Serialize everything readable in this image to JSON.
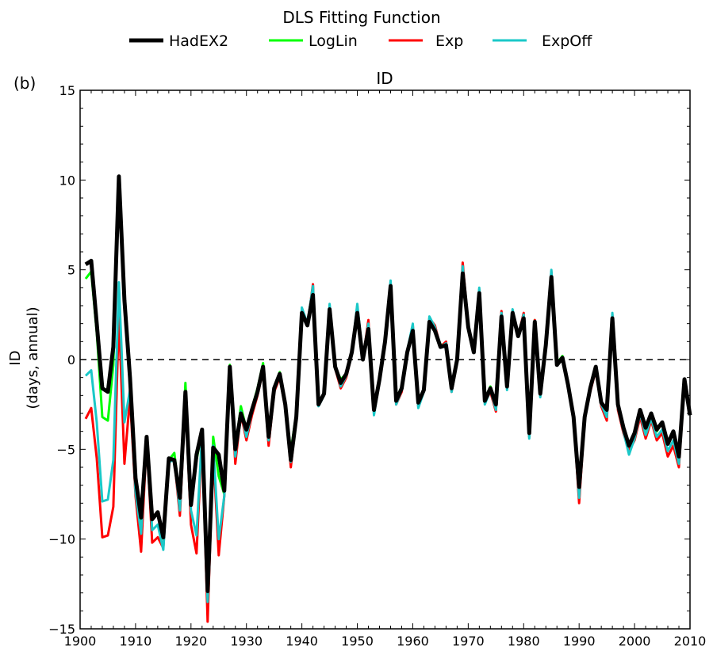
{
  "chart_data": {
    "type": "line",
    "legend_title": "DLS Fitting Function",
    "legend_position": "top-center",
    "panel_label": "(b)",
    "title": "ID",
    "ylabel_line1": "ID",
    "ylabel_line2": "(days, annual)",
    "xlabel": "",
    "xlim": [
      1900,
      2010
    ],
    "ylim": [
      -15,
      15
    ],
    "xticks": [
      1900,
      1910,
      1920,
      1930,
      1940,
      1950,
      1960,
      1970,
      1980,
      1990,
      2000,
      2010
    ],
    "yticks": [
      -15,
      -10,
      -5,
      0,
      5,
      10,
      15
    ],
    "ytick_labels": [
      "−15",
      "−10",
      "−5",
      "0",
      "5",
      "10",
      "15"
    ],
    "zero_line": true,
    "grid": false,
    "x": [
      1901,
      1902,
      1903,
      1904,
      1905,
      1906,
      1907,
      1908,
      1909,
      1910,
      1911,
      1912,
      1913,
      1914,
      1915,
      1916,
      1917,
      1918,
      1919,
      1920,
      1921,
      1922,
      1923,
      1924,
      1925,
      1926,
      1927,
      1928,
      1929,
      1930,
      1931,
      1932,
      1933,
      1934,
      1935,
      1936,
      1937,
      1938,
      1939,
      1940,
      1941,
      1942,
      1943,
      1944,
      1945,
      1946,
      1947,
      1948,
      1949,
      1950,
      1951,
      1952,
      1953,
      1954,
      1955,
      1956,
      1957,
      1958,
      1959,
      1960,
      1961,
      1962,
      1963,
      1964,
      1965,
      1966,
      1967,
      1968,
      1969,
      1970,
      1971,
      1972,
      1973,
      1974,
      1975,
      1976,
      1977,
      1978,
      1979,
      1980,
      1981,
      1982,
      1983,
      1984,
      1985,
      1986,
      1987,
      1988,
      1989,
      1990,
      1991,
      1992,
      1993,
      1994,
      1995,
      1996,
      1997,
      1998,
      1999,
      2000,
      2001,
      2002,
      2003,
      2004,
      2005,
      2006,
      2007,
      2008,
      2009,
      2010
    ],
    "series": [
      {
        "name": "LogLin",
        "color": "#00ff00",
        "width": 3,
        "values": [
          4.5,
          4.9,
          1.5,
          -3.2,
          -3.4,
          -0.3,
          10.1,
          3.0,
          -1.0,
          -7.2,
          -9.3,
          -4.3,
          -8.9,
          -8.6,
          -10.0,
          -5.6,
          -5.2,
          -7.8,
          -1.3,
          -8.0,
          -5.6,
          -4.0,
          -12.8,
          -4.3,
          -6.5,
          -7.5,
          -0.3,
          -5.0,
          -2.6,
          -3.9,
          -2.7,
          -1.6,
          -0.2,
          -4.1,
          -1.5,
          -0.7,
          -2.4,
          -5.1,
          -3.0,
          2.6,
          1.9,
          3.6,
          -2.4,
          -1.9,
          2.9,
          -0.4,
          -1.1,
          -0.8,
          0.4,
          2.8,
          0.1,
          1.8,
          -2.8,
          -1.1,
          1.1,
          4.2,
          -2.2,
          -1.5,
          0.5,
          1.8,
          -2.4,
          -1.6,
          2.2,
          1.7,
          0.8,
          0.9,
          -1.4,
          0.0,
          4.9,
          1.9,
          0.4,
          3.8,
          -2.2,
          -1.5,
          -2.5,
          2.5,
          -1.5,
          2.6,
          1.3,
          2.4,
          -4.0,
          2.2,
          -1.8,
          0.8,
          4.7,
          -0.2,
          0.2,
          -1.4,
          -3.2,
          -7.2,
          -3.2,
          -1.6,
          -0.4,
          -2.4,
          -2.8,
          2.3,
          -2.5,
          -3.9,
          -4.9,
          -4.1,
          -2.8,
          -3.9,
          -3.1,
          -4.0,
          -3.5,
          -4.7,
          -4.0,
          -5.3,
          -1.1,
          -3.1
        ]
      },
      {
        "name": "Exp",
        "color": "#ff0000",
        "width": 3,
        "values": [
          -3.3,
          -2.7,
          -5.5,
          -9.9,
          -9.8,
          -8.2,
          2.5,
          -5.8,
          -2.1,
          -7.6,
          -10.7,
          -4.5,
          -10.2,
          -9.9,
          -10.5,
          -5.6,
          -5.6,
          -8.7,
          -2.2,
          -9.2,
          -10.8,
          -4.2,
          -14.6,
          -5.0,
          -10.9,
          -7.6,
          -0.5,
          -5.8,
          -3.0,
          -4.5,
          -3.1,
          -2.0,
          -0.6,
          -4.8,
          -1.8,
          -1.0,
          -2.7,
          -6.0,
          -3.2,
          2.5,
          1.9,
          4.2,
          -2.5,
          -2.0,
          2.9,
          -0.5,
          -1.6,
          -1.0,
          0.3,
          3.0,
          0.0,
          2.2,
          -3.0,
          -1.2,
          1.2,
          4.3,
          -2.5,
          -1.8,
          0.4,
          1.9,
          -2.6,
          -1.7,
          2.3,
          1.9,
          0.7,
          1.0,
          -1.8,
          -0.1,
          5.4,
          1.9,
          0.5,
          3.9,
          -2.4,
          -1.8,
          -2.9,
          2.7,
          -1.6,
          2.7,
          1.3,
          2.6,
          -4.3,
          2.2,
          -2.0,
          0.8,
          4.9,
          -0.3,
          0.1,
          -1.5,
          -3.2,
          -8.0,
          -3.3,
          -1.8,
          -0.6,
          -2.6,
          -3.4,
          2.5,
          -2.8,
          -4.1,
          -5.1,
          -4.5,
          -3.2,
          -4.4,
          -3.4,
          -4.5,
          -4.1,
          -5.4,
          -4.8,
          -6.0,
          -1.3,
          -3.1
        ]
      },
      {
        "name": "ExpOff",
        "color": "#1ac8c8",
        "width": 3,
        "values": [
          -0.9,
          -0.6,
          -3.5,
          -7.9,
          -7.8,
          -5.6,
          4.3,
          -3.5,
          -1.7,
          -7.4,
          -9.7,
          -4.5,
          -9.5,
          -9.2,
          -10.6,
          -5.7,
          -5.6,
          -8.4,
          -1.9,
          -8.4,
          -9.8,
          -4.1,
          -13.5,
          -4.8,
          -10.0,
          -7.6,
          -0.5,
          -5.4,
          -2.9,
          -4.3,
          -2.9,
          -1.8,
          -0.4,
          -4.5,
          -1.6,
          -0.8,
          -2.6,
          -5.7,
          -3.2,
          2.9,
          2.0,
          4.1,
          -2.6,
          -2.0,
          3.1,
          -0.4,
          -1.5,
          -0.9,
          0.4,
          3.1,
          0.1,
          2.0,
          -3.1,
          -1.2,
          1.1,
          4.4,
          -2.5,
          -1.7,
          0.5,
          2.0,
          -2.7,
          -1.8,
          2.4,
          1.8,
          0.7,
          0.9,
          -1.8,
          -0.1,
          5.2,
          2.0,
          0.4,
          4.0,
          -2.5,
          -1.7,
          -2.8,
          2.6,
          -1.7,
          2.8,
          1.3,
          2.5,
          -4.4,
          2.1,
          -2.1,
          0.8,
          5.0,
          -0.3,
          0.1,
          -1.5,
          -3.3,
          -7.7,
          -3.3,
          -1.7,
          -0.5,
          -2.5,
          -3.2,
          2.6,
          -2.7,
          -4.0,
          -5.3,
          -4.4,
          -3.0,
          -4.2,
          -3.3,
          -4.3,
          -3.9,
          -5.1,
          -4.5,
          -5.8,
          -1.3,
          -3.1
        ]
      },
      {
        "name": "HadEX2",
        "color": "#000000",
        "width": 5,
        "values": [
          5.3,
          5.5,
          2.0,
          -1.6,
          -1.8,
          0.7,
          10.2,
          3.3,
          -1.0,
          -6.6,
          -8.8,
          -4.3,
          -8.9,
          -8.5,
          -9.9,
          -5.5,
          -5.6,
          -7.7,
          -1.8,
          -8.1,
          -5.3,
          -3.9,
          -12.9,
          -4.9,
          -5.3,
          -7.3,
          -0.4,
          -5.0,
          -3.0,
          -3.9,
          -2.8,
          -1.8,
          -0.4,
          -4.3,
          -1.6,
          -0.8,
          -2.5,
          -5.6,
          -3.2,
          2.6,
          1.9,
          3.6,
          -2.5,
          -1.9,
          2.8,
          -0.4,
          -1.3,
          -0.8,
          0.4,
          2.6,
          0.0,
          1.7,
          -2.8,
          -1.1,
          1.0,
          4.1,
          -2.3,
          -1.6,
          0.4,
          1.6,
          -2.4,
          -1.7,
          2.1,
          1.6,
          0.7,
          0.8,
          -1.6,
          0.0,
          4.8,
          1.8,
          0.4,
          3.7,
          -2.3,
          -1.6,
          -2.5,
          2.4,
          -1.5,
          2.6,
          1.3,
          2.3,
          -4.1,
          2.1,
          -1.9,
          0.8,
          4.6,
          -0.3,
          0.1,
          -1.4,
          -3.2,
          -7.1,
          -3.2,
          -1.6,
          -0.4,
          -2.4,
          -2.8,
          2.3,
          -2.5,
          -3.8,
          -4.8,
          -4.1,
          -2.8,
          -3.8,
          -3.0,
          -3.9,
          -3.5,
          -4.7,
          -4.0,
          -5.4,
          -1.1,
          -3.1
        ]
      }
    ],
    "legend_order": [
      "HadEX2",
      "LogLin",
      "Exp",
      "ExpOff"
    ]
  }
}
